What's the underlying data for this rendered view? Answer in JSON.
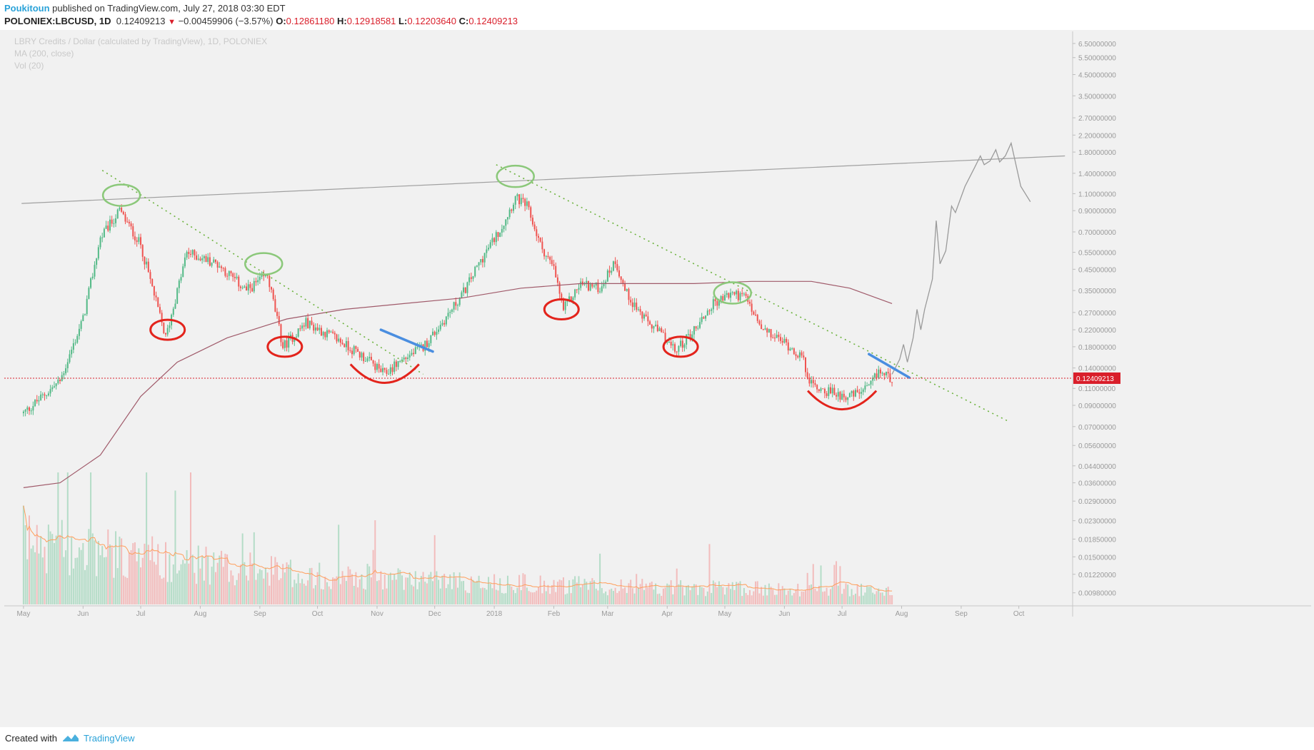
{
  "header": {
    "author": "Poukitoun",
    "published": " published on TradingView.com, July 27, 2018 03:30 EDT",
    "symbol": "POLONIEX:LBCUSD, 1D",
    "last": "0.12409213",
    "change": "−0.00459906 (−3.57%)",
    "o_label": "O:",
    "o": "0.12861180",
    "h_label": "H:",
    "h": "0.12918581",
    "l_label": "L:",
    "l": "0.12203640",
    "c_label": "C:",
    "c": "0.12409213"
  },
  "footer": {
    "created": "Created with",
    "brand": "TradingView"
  },
  "colors": {
    "up": "#52b986",
    "down": "#ef5350",
    "ma": "#a05a6a",
    "vol_ma": "#ff9e5a",
    "trend": "#6db33f",
    "green_mark": "#8bc87a",
    "red_mark": "#e3241c",
    "blue_mark": "#4a8ee0",
    "projection": "#9a9a9a",
    "price_line": "#d91e2a"
  },
  "chart_data": {
    "type": "candlestick",
    "title": "LBRY Credits / Dollar (calculated by TradingView), 1D, POLONIEX",
    "indicators": [
      "MA (200, close)",
      "Vol (20)"
    ],
    "scale": "log",
    "ylim": [
      0.0084,
      7.5
    ],
    "price_ticks": [
      "6.50000000",
      "5.50000000",
      "4.50000000",
      "3.50000000",
      "2.70000000",
      "2.20000000",
      "1.80000000",
      "1.40000000",
      "1.10000000",
      "0.90000000",
      "0.70000000",
      "0.55000000",
      "0.45000000",
      "0.35000000",
      "0.27000000",
      "0.22000000",
      "0.18000000",
      "0.14000000",
      "0.11000000",
      "0.09000000",
      "0.07000000",
      "0.05600000",
      "0.04400000",
      "0.03600000",
      "0.02900000",
      "0.02300000",
      "0.01850000",
      "0.01500000",
      "0.01220000",
      "0.00980000"
    ],
    "last_price": 0.12409213,
    "last_label": "0.12409213",
    "month_labels": [
      "May",
      "Jun",
      "Jul",
      "Aug",
      "Sep",
      "Oct",
      "Nov",
      "Dec",
      "2018",
      "Feb",
      "Mar",
      "Apr",
      "May",
      "Jun",
      "Jul",
      "Aug",
      "Sep",
      "Oct"
    ],
    "anchors": [
      [
        "2017-05-01",
        0.082
      ],
      [
        "2017-05-20",
        0.12
      ],
      [
        "2017-06-01",
        0.25
      ],
      [
        "2017-06-10",
        0.65
      ],
      [
        "2017-06-20",
        0.9
      ],
      [
        "2017-07-01",
        0.6
      ],
      [
        "2017-07-14",
        0.2
      ],
      [
        "2017-07-25",
        0.55
      ],
      [
        "2017-08-10",
        0.48
      ],
      [
        "2017-08-25",
        0.35
      ],
      [
        "2017-09-05",
        0.42
      ],
      [
        "2017-09-13",
        0.18
      ],
      [
        "2017-09-25",
        0.24
      ],
      [
        "2017-10-10",
        0.2
      ],
      [
        "2017-10-25",
        0.16
      ],
      [
        "2017-11-05",
        0.13
      ],
      [
        "2017-11-12",
        0.15
      ],
      [
        "2017-11-25",
        0.18
      ],
      [
        "2017-12-05",
        0.24
      ],
      [
        "2017-12-15",
        0.33
      ],
      [
        "2017-12-25",
        0.5
      ],
      [
        "2018-01-05",
        0.75
      ],
      [
        "2018-01-12",
        1.05
      ],
      [
        "2018-01-18",
        0.95
      ],
      [
        "2018-01-25",
        0.6
      ],
      [
        "2018-02-01",
        0.45
      ],
      [
        "2018-02-06",
        0.28
      ],
      [
        "2018-02-15",
        0.38
      ],
      [
        "2018-02-25",
        0.36
      ],
      [
        "2018-03-05",
        0.5
      ],
      [
        "2018-03-10",
        0.35
      ],
      [
        "2018-03-20",
        0.25
      ],
      [
        "2018-03-31",
        0.2
      ],
      [
        "2018-04-05",
        0.17
      ],
      [
        "2018-04-15",
        0.22
      ],
      [
        "2018-04-25",
        0.3
      ],
      [
        "2018-05-05",
        0.34
      ],
      [
        "2018-05-12",
        0.32
      ],
      [
        "2018-05-20",
        0.22
      ],
      [
        "2018-06-01",
        0.19
      ],
      [
        "2018-06-10",
        0.16
      ],
      [
        "2018-06-15",
        0.115
      ],
      [
        "2018-06-25",
        0.105
      ],
      [
        "2018-07-05",
        0.1
      ],
      [
        "2018-07-15",
        0.11
      ],
      [
        "2018-07-20",
        0.135
      ],
      [
        "2018-07-27",
        0.124
      ]
    ],
    "ma200": [
      [
        "2017-05-01",
        0.034
      ],
      [
        "2017-05-20",
        0.036
      ],
      [
        "2017-06-10",
        0.05
      ],
      [
        "2017-07-01",
        0.1
      ],
      [
        "2017-07-20",
        0.15
      ],
      [
        "2017-08-15",
        0.2
      ],
      [
        "2017-09-15",
        0.25
      ],
      [
        "2017-10-15",
        0.28
      ],
      [
        "2017-11-15",
        0.3
      ],
      [
        "2017-12-15",
        0.32
      ],
      [
        "2018-01-15",
        0.36
      ],
      [
        "2018-02-15",
        0.38
      ],
      [
        "2018-03-15",
        0.38
      ],
      [
        "2018-04-15",
        0.38
      ],
      [
        "2018-05-15",
        0.39
      ],
      [
        "2018-06-15",
        0.39
      ],
      [
        "2018-07-05",
        0.36
      ],
      [
        "2018-07-27",
        0.3
      ]
    ],
    "resistance_line": [
      [
        "2017-04-30",
        0.98
      ],
      [
        "2018-10-25",
        1.72
      ]
    ],
    "trendlines": [
      [
        [
          "2017-06-11",
          1.45
        ],
        [
          "2017-11-25",
          0.13
        ]
      ],
      [
        [
          "2018-01-02",
          1.55
        ],
        [
          "2018-09-25",
          0.075
        ]
      ]
    ],
    "projection": [
      [
        "2018-07-27",
        0.13
      ],
      [
        "2018-07-31",
        0.155
      ],
      [
        "2018-08-02",
        0.185
      ],
      [
        "2018-08-04",
        0.15
      ],
      [
        "2018-08-07",
        0.2
      ],
      [
        "2018-08-09",
        0.28
      ],
      [
        "2018-08-11",
        0.22
      ],
      [
        "2018-08-13",
        0.28
      ],
      [
        "2018-08-17",
        0.4
      ],
      [
        "2018-08-19",
        0.8
      ],
      [
        "2018-08-21",
        0.48
      ],
      [
        "2018-08-24",
        0.56
      ],
      [
        "2018-08-27",
        0.95
      ],
      [
        "2018-08-29",
        0.88
      ],
      [
        "2018-09-03",
        1.2
      ],
      [
        "2018-09-08",
        1.5
      ],
      [
        "2018-09-11",
        1.72
      ],
      [
        "2018-09-13",
        1.55
      ],
      [
        "2018-09-16",
        1.62
      ],
      [
        "2018-09-19",
        1.85
      ],
      [
        "2018-09-21",
        1.6
      ],
      [
        "2018-09-24",
        1.72
      ],
      [
        "2018-09-27",
        2.0
      ],
      [
        "2018-10-02",
        1.2
      ],
      [
        "2018-10-07",
        1.0
      ]
    ],
    "green_circles": [
      [
        "2017-06-21",
        1.08
      ],
      [
        "2017-09-03",
        0.48
      ],
      [
        "2018-01-12",
        1.35
      ],
      [
        "2018-05-05",
        0.34
      ]
    ],
    "red_marks": [
      [
        "2017-07-15",
        0.22
      ],
      [
        "2017-09-14",
        0.18
      ],
      [
        "2017-11-05",
        0.13
      ],
      [
        "2018-02-05",
        0.28
      ],
      [
        "2018-04-08",
        0.18
      ],
      [
        "2018-07-01",
        0.095
      ]
    ],
    "blue_marks": [
      [
        [
          "2017-11-03",
          0.22
        ],
        [
          "2017-11-30",
          0.17
        ]
      ],
      [
        [
          "2018-07-15",
          0.165
        ],
        [
          "2018-08-05",
          0.125
        ]
      ]
    ]
  }
}
